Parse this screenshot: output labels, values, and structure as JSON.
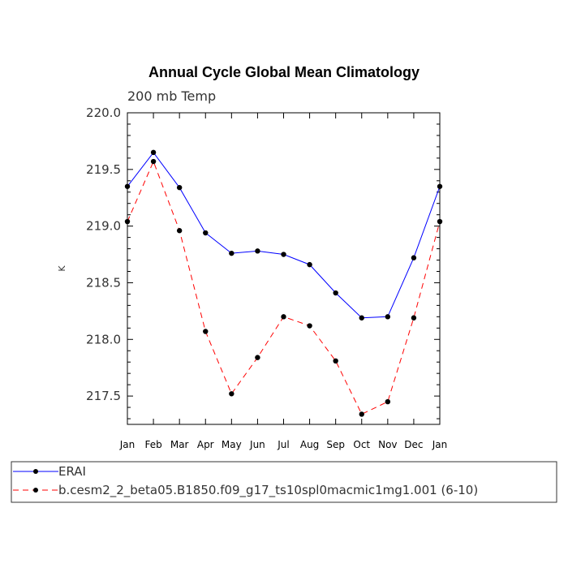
{
  "chart_data": {
    "type": "line",
    "title": "Annual Cycle Global Mean Climatology",
    "subtitle": "200 mb Temp",
    "xlabel": "",
    "ylabel": "K",
    "categories": [
      "Jan",
      "Feb",
      "Mar",
      "Apr",
      "May",
      "Jun",
      "Jul",
      "Aug",
      "Sep",
      "Oct",
      "Nov",
      "Dec",
      "Jan"
    ],
    "ylim": [
      217.25,
      220.0
    ],
    "yticks": [
      "220.0",
      "219.5",
      "219.0",
      "218.5",
      "218.0",
      "217.5"
    ],
    "ytick_values": [
      220.0,
      219.5,
      219.0,
      218.5,
      218.0,
      217.5
    ],
    "series": [
      {
        "name": "ERAI",
        "color": "#0000ff",
        "dash": "solid",
        "values": [
          219.35,
          219.65,
          219.34,
          218.94,
          218.76,
          218.78,
          218.75,
          218.66,
          218.41,
          218.19,
          218.2,
          218.72,
          219.35
        ]
      },
      {
        "name": "b.cesm2_2_beta05.B1850.f09_g17_ts10spl0macmic1mg1.001 (6-10)",
        "color": "#ff0000",
        "dash": "dashed",
        "values": [
          219.04,
          219.57,
          218.96,
          218.07,
          217.52,
          217.84,
          218.2,
          218.12,
          217.81,
          217.34,
          217.45,
          218.19,
          219.04
        ]
      }
    ]
  }
}
